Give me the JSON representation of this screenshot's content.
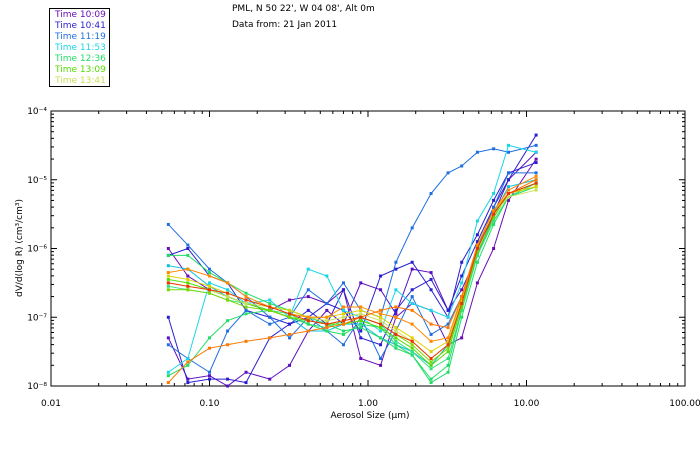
{
  "header": {
    "location": "PML, N 50 22', W 04 08', Alt 0m",
    "date": "Data from: 21 Jan 2011"
  },
  "legend": [
    {
      "label": "Time 10:09",
      "color": "#6a0db5"
    },
    {
      "label": "Time 10:41",
      "color": "#2a1fcf"
    },
    {
      "label": "Time 11:19",
      "color": "#1f6fe0"
    },
    {
      "label": "Time 11:53",
      "color": "#19d6e6"
    },
    {
      "label": "Time 12:36",
      "color": "#22dd66"
    },
    {
      "label": "Time 13:09",
      "color": "#55dd00"
    },
    {
      "label": "Time 13:41",
      "color": "#c9e05a"
    }
  ],
  "chart_data": {
    "type": "line",
    "x_scale": "log",
    "y_scale": "log",
    "xlabel": "Aerosol Size (µm)",
    "ylabel": "dV/d(log R) (cm³/cm³)",
    "xlim": [
      0.01,
      100.0
    ],
    "ylim_exp": [
      -8,
      -4
    ],
    "x_ticks": [
      {
        "v": 0.01,
        "label": "0.01"
      },
      {
        "v": 0.1,
        "label": "0.10"
      },
      {
        "v": 1.0,
        "label": "1.00"
      },
      {
        "v": 10.0,
        "label": "10.00"
      },
      {
        "v": 100.0,
        "label": "100.00"
      }
    ],
    "y_ticks": [
      {
        "exp": -8,
        "label": "10⁻⁸"
      },
      {
        "exp": -7,
        "label": "10⁻⁷"
      },
      {
        "exp": -6,
        "label": "10⁻⁶"
      },
      {
        "exp": -5,
        "label": "10⁻⁵"
      },
      {
        "exp": -4,
        "label": "10⁻⁴"
      }
    ],
    "x": [
      0.055,
      0.073,
      0.1,
      0.13,
      0.17,
      0.24,
      0.32,
      0.42,
      0.55,
      0.7,
      0.9,
      1.2,
      1.5,
      1.9,
      2.5,
      3.2,
      3.9,
      4.9,
      6.2,
      7.7,
      11.5
    ],
    "series": [
      {
        "name": "10:09 a",
        "color": "#6a0db5",
        "log_y": [
          -6.0,
          -6.4,
          -6.6,
          -6.7,
          -6.8,
          -6.9,
          -6.75,
          -6.7,
          -6.8,
          -6.6,
          -7.6,
          -7.7,
          -7.0,
          -6.8,
          -6.9,
          -7.4,
          -7.3,
          -6.5,
          -6.0,
          -5.3,
          -4.7
        ]
      },
      {
        "name": "10:09 b",
        "color": "#5a10c0",
        "log_y": [
          -7.3,
          -7.9,
          -7.85,
          -8.0,
          -7.8,
          -7.9,
          -7.7,
          -7.2,
          -6.9,
          -7.1,
          -6.5,
          -6.6,
          -6.95,
          -6.3,
          -6.35,
          -6.9,
          -6.6,
          -6.1,
          -5.5,
          -5.0,
          -4.6
        ]
      },
      {
        "name": "10:41 a",
        "color": "#2a1fcf",
        "log_y": [
          -6.1,
          -6.0,
          -6.4,
          -6.5,
          -6.9,
          -7.0,
          -7.1,
          -7.0,
          -6.8,
          -6.9,
          -7.2,
          -6.4,
          -6.3,
          -6.2,
          -6.6,
          -7.0,
          -6.2,
          -5.8,
          -5.3,
          -4.9,
          -4.75
        ]
      },
      {
        "name": "10:41 b",
        "color": "#2a1fcf",
        "log_y": [
          -7.0,
          -7.95,
          -7.9,
          -7.9,
          -7.95,
          -7.3,
          -7.1,
          -6.9,
          -7.1,
          -6.6,
          -7.3,
          -7.4,
          -6.9,
          -6.6,
          -6.45,
          -6.9,
          -6.4,
          -5.9,
          -5.4,
          -5.0,
          -4.35
        ]
      },
      {
        "name": "11:19 a",
        "color": "#1f6fe0",
        "log_y": [
          -5.65,
          -5.95,
          -6.3,
          -6.5,
          -6.7,
          -7.0,
          -7.3,
          -7.0,
          -7.2,
          -7.4,
          -7.0,
          -7.6,
          -7.2,
          -6.7,
          -7.25,
          -7.1,
          -6.7,
          -6.0,
          -5.4,
          -4.9,
          -4.9
        ]
      },
      {
        "name": "11:19 b",
        "color": "#1f6fe0",
        "log_y": [
          -7.4,
          -7.6,
          -7.8,
          -7.2,
          -6.9,
          -7.1,
          -7.0,
          -6.6,
          -6.8,
          -6.5,
          -6.9,
          -7.0,
          -6.2,
          -5.7,
          -5.2,
          -4.9,
          -4.8,
          -4.6,
          -4.55,
          -4.6,
          -4.5
        ]
      },
      {
        "name": "11:53 a",
        "color": "#19d6e6",
        "log_y": [
          -7.8,
          -7.6,
          -6.5,
          -6.6,
          -6.8,
          -6.75,
          -7.0,
          -6.3,
          -6.4,
          -6.9,
          -7.0,
          -7.2,
          -6.6,
          -6.8,
          -6.9,
          -7.0,
          -6.5,
          -5.6,
          -5.2,
          -4.5,
          -4.6
        ]
      },
      {
        "name": "11:53 b",
        "color": "#10c0d8",
        "log_y": [
          -6.25,
          -6.3,
          -6.55,
          -6.7,
          -6.8,
          -6.9,
          -7.0,
          -7.2,
          -7.2,
          -7.1,
          -7.1,
          -7.3,
          -7.4,
          -7.5,
          -7.7,
          -7.4,
          -6.7,
          -6.0,
          -5.5,
          -5.1,
          -5.0
        ]
      },
      {
        "name": "12:36 a",
        "color": "#22dd66",
        "log_y": [
          -6.1,
          -6.1,
          -6.35,
          -6.5,
          -6.65,
          -6.8,
          -6.9,
          -7.0,
          -7.1,
          -7.2,
          -7.15,
          -7.3,
          -7.45,
          -7.55,
          -7.9,
          -7.7,
          -6.9,
          -6.1,
          -5.55,
          -5.2,
          -5.05
        ]
      },
      {
        "name": "12:36 b",
        "color": "#33e080",
        "log_y": [
          -6.55,
          -6.6,
          -6.65,
          -6.75,
          -6.8,
          -6.9,
          -6.95,
          -7.1,
          -7.15,
          -7.05,
          -7.0,
          -7.1,
          -7.35,
          -7.5,
          -7.75,
          -7.6,
          -6.9,
          -6.1,
          -5.6,
          -5.25,
          -5.05
        ]
      },
      {
        "name": "12:36 c",
        "color": "#22dd66",
        "log_y": [
          -7.85,
          -7.7,
          -7.3,
          -7.05,
          -6.95,
          -6.9,
          -7.0,
          -7.1,
          -7.2,
          -7.25,
          -7.1,
          -7.15,
          -7.4,
          -7.55,
          -7.95,
          -7.8,
          -7.0,
          -6.2,
          -5.65,
          -5.25,
          -5.1
        ]
      },
      {
        "name": "13:09 a",
        "color": "#55dd00",
        "log_y": [
          -6.45,
          -6.5,
          -6.6,
          -6.7,
          -6.8,
          -6.9,
          -7.0,
          -7.05,
          -7.1,
          -7.1,
          -7.05,
          -7.15,
          -7.3,
          -7.45,
          -7.7,
          -7.5,
          -6.85,
          -6.05,
          -5.55,
          -5.2,
          -5.05
        ]
      },
      {
        "name": "13:09 b",
        "color": "#7ad800",
        "log_y": [
          -6.6,
          -6.6,
          -6.65,
          -6.75,
          -6.85,
          -6.9,
          -7.0,
          -7.05,
          -7.1,
          -7.05,
          -7.0,
          -7.1,
          -7.25,
          -7.4,
          -7.65,
          -7.45,
          -6.8,
          -6.0,
          -5.5,
          -5.2,
          -5.1
        ]
      },
      {
        "name": "13:41 a",
        "color": "#c9e05a",
        "log_y": [
          -6.5,
          -6.55,
          -6.6,
          -6.7,
          -6.8,
          -6.85,
          -6.95,
          -7.0,
          -7.05,
          -7.0,
          -6.95,
          -7.05,
          -7.2,
          -7.35,
          -7.6,
          -7.4,
          -6.8,
          -6.0,
          -5.5,
          -5.25,
          -5.15
        ]
      },
      {
        "name": "13:41 b",
        "color": "#e0d000",
        "log_y": [
          -6.4,
          -6.45,
          -6.55,
          -6.65,
          -6.75,
          -6.85,
          -6.9,
          -7.0,
          -7.0,
          -6.95,
          -6.9,
          -7.0,
          -7.15,
          -7.3,
          -7.5,
          -7.35,
          -6.75,
          -5.95,
          -5.45,
          -5.2,
          -5.1
        ]
      },
      {
        "name": "orange a",
        "color": "#ff8800",
        "log_y": [
          -6.35,
          -6.3,
          -6.4,
          -6.5,
          -6.7,
          -6.85,
          -6.95,
          -7.0,
          -7.0,
          -6.85,
          -6.85,
          -6.95,
          -7.0,
          -7.1,
          -7.35,
          -7.3,
          -6.7,
          -5.95,
          -5.45,
          -5.15,
          -4.95
        ]
      },
      {
        "name": "orange b",
        "color": "#ff7700",
        "log_y": [
          -7.95,
          -7.65,
          -7.45,
          -7.4,
          -7.35,
          -7.3,
          -7.25,
          -7.2,
          -7.15,
          -7.1,
          -7.0,
          -6.9,
          -6.85,
          -6.9,
          -7.1,
          -7.15,
          -6.7,
          -6.0,
          -5.5,
          -5.2,
          -5.0
        ]
      },
      {
        "name": "red",
        "color": "#ee3300",
        "log_y": [
          -6.5,
          -6.55,
          -6.6,
          -6.65,
          -6.75,
          -6.85,
          -6.95,
          -7.05,
          -7.1,
          -7.05,
          -7.0,
          -7.1,
          -7.25,
          -7.35,
          -7.6,
          -7.4,
          -6.8,
          -6.0,
          -5.5,
          -5.2,
          -5.05
        ]
      }
    ]
  }
}
